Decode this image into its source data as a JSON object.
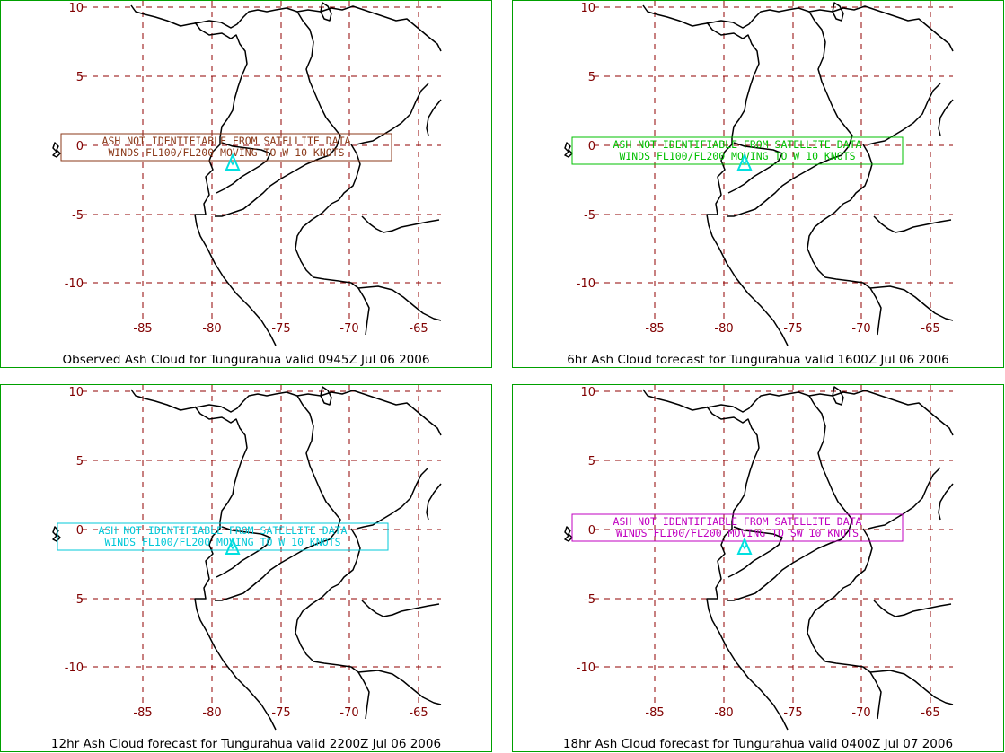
{
  "map": {
    "lat_labels": [
      "10",
      "5",
      "0",
      "-5",
      "-10"
    ],
    "lon_labels": [
      "-85",
      "-80",
      "-75",
      "-70",
      "-65"
    ],
    "grid_color": "#900000",
    "coast_color": "#000000",
    "volcano_color": "#00e0e0",
    "volcano": "Tungurahua"
  },
  "panels": [
    {
      "caption": "Observed Ash Cloud for Tungurahua valid 0945Z Jul 06 2006",
      "note_line1": "ASH NOT IDENTIFIABLE FROM SATELLITE DATA",
      "note_line2": "WINDS FL100/FL200 MOVING TO W 10 KNOTS",
      "note_color": "#8b3a1a"
    },
    {
      "caption": "6hr Ash Cloud forecast for Tungurahua valid 1600Z Jul 06 2006",
      "note_line1": "ASH NOT IDENTIFIABLE FROM SATELLITE DATA",
      "note_line2": "WINDS FL100/FL200 MOVING TO W 10 KNOTS",
      "note_color": "#00c000"
    },
    {
      "caption": "12hr Ash Cloud forecast for Tungurahua valid 2200Z Jul 06 2006",
      "note_line1": "ASH NOT IDENTIFIABLE FROM SATELLITE DATA",
      "note_line2": "WINDS FL100/FL200 MOVING TO W 10 KNOTS",
      "note_color": "#00c8d8"
    },
    {
      "caption": "18hr Ash Cloud forecast for Tungurahua valid 0400Z Jul 07 2006",
      "note_line1": "ASH NOT IDENTIFIABLE FROM SATELLITE DATA",
      "note_line2": "WINDS FL100/FL200 MOVING TO SW 10 KNOTS",
      "note_color": "#c000c0"
    }
  ]
}
